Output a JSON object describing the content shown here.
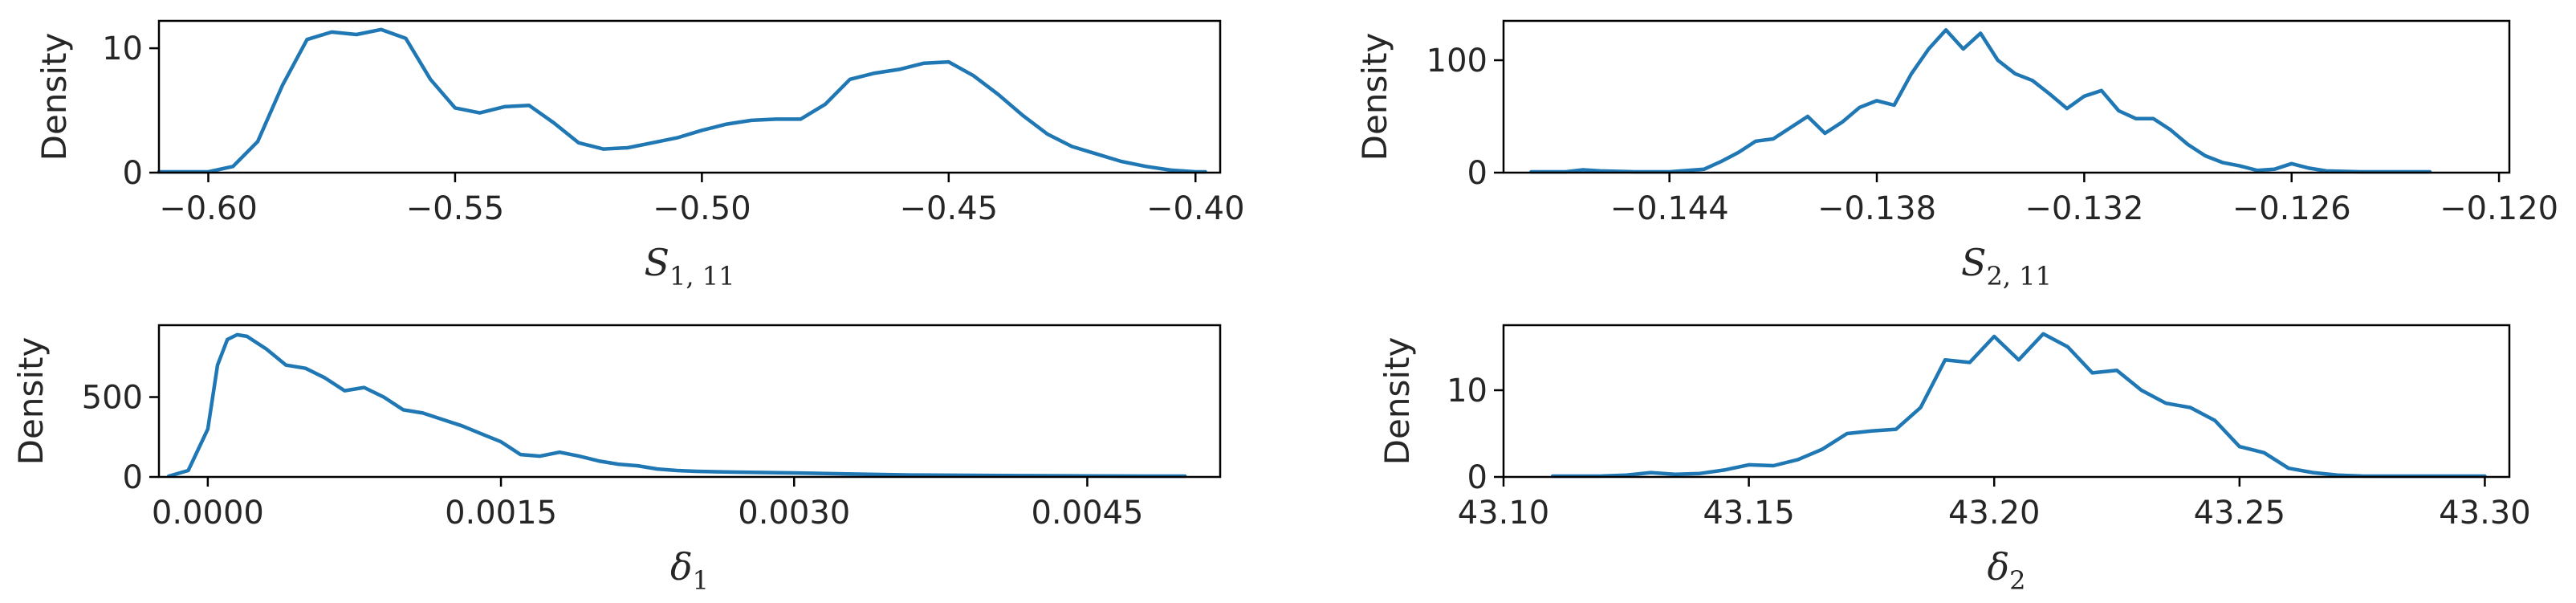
{
  "style": {
    "line_color": "#1f77b4",
    "background": "#ffffff",
    "axis_color": "#000000"
  },
  "chart_data": [
    {
      "type": "line",
      "ylabel": "Density",
      "xlabel_main": "S",
      "xlabel_sub": "1, 11",
      "xlim": [
        -0.61,
        -0.395
      ],
      "ylim": [
        0,
        12.2
      ],
      "xticks": [
        -0.6,
        -0.55,
        -0.5,
        -0.45,
        -0.4
      ],
      "xtick_labels": [
        "−0.60",
        "−0.55",
        "−0.50",
        "−0.45",
        "−0.40"
      ],
      "yticks": [
        0,
        10
      ],
      "ytick_labels": [
        "0",
        "10"
      ],
      "series": [
        {
          "x": [
            -0.61,
            -0.6,
            -0.595,
            -0.59,
            -0.585,
            -0.58,
            -0.575,
            -0.57,
            -0.565,
            -0.56,
            -0.555,
            -0.55,
            -0.545,
            -0.54,
            -0.535,
            -0.53,
            -0.525,
            -0.52,
            -0.515,
            -0.51,
            -0.505,
            -0.5,
            -0.495,
            -0.49,
            -0.485,
            -0.48,
            -0.475,
            -0.47,
            -0.465,
            -0.46,
            -0.455,
            -0.45,
            -0.445,
            -0.44,
            -0.435,
            -0.43,
            -0.425,
            -0.42,
            -0.415,
            -0.41,
            -0.405,
            -0.4,
            -0.398
          ],
          "y": [
            0.0,
            0.05,
            0.5,
            2.5,
            7.0,
            10.7,
            11.3,
            11.1,
            11.5,
            10.8,
            7.5,
            5.2,
            4.8,
            5.3,
            5.4,
            4.0,
            2.4,
            1.9,
            2.0,
            2.4,
            2.8,
            3.4,
            3.9,
            4.2,
            4.3,
            4.3,
            5.5,
            7.5,
            8.0,
            8.3,
            8.8,
            8.9,
            7.8,
            6.3,
            4.6,
            3.1,
            2.1,
            1.5,
            0.9,
            0.5,
            0.2,
            0.05,
            0.02
          ]
        }
      ]
    },
    {
      "type": "line",
      "ylabel": "Density",
      "xlabel_main": "S",
      "xlabel_sub": "2, 11",
      "xlim": [
        -0.1488,
        -0.1197
      ],
      "ylim": [
        0,
        135
      ],
      "xticks": [
        -0.144,
        -0.138,
        -0.132,
        -0.126,
        -0.12
      ],
      "xtick_labels": [
        "−0.144",
        "−0.138",
        "−0.132",
        "−0.126",
        "−0.120"
      ],
      "yticks": [
        0,
        100
      ],
      "ytick_labels": [
        "0",
        "100"
      ],
      "series": [
        {
          "x": [
            -0.148,
            -0.147,
            -0.1465,
            -0.146,
            -0.145,
            -0.144,
            -0.143,
            -0.1425,
            -0.142,
            -0.1415,
            -0.141,
            -0.1405,
            -0.14,
            -0.1395,
            -0.139,
            -0.1385,
            -0.138,
            -0.1375,
            -0.137,
            -0.1365,
            -0.136,
            -0.1355,
            -0.135,
            -0.1345,
            -0.134,
            -0.1335,
            -0.133,
            -0.1325,
            -0.132,
            -0.1315,
            -0.131,
            -0.1305,
            -0.13,
            -0.1295,
            -0.129,
            -0.1285,
            -0.128,
            -0.1275,
            -0.127,
            -0.1265,
            -0.126,
            -0.1255,
            -0.125,
            -0.124,
            -0.123,
            -0.122
          ],
          "y": [
            0,
            0.5,
            2.5,
            1.5,
            0.3,
            0.5,
            3.0,
            10,
            18,
            28,
            30,
            40,
            50,
            35,
            45,
            58,
            64,
            60,
            88,
            110,
            127,
            110,
            124,
            100,
            88,
            82,
            70,
            57,
            68,
            73,
            55,
            48,
            48,
            38,
            25,
            15,
            9,
            6,
            2,
            3,
            8,
            4,
            1.5,
            0.5,
            0.2,
            0
          ]
        }
      ]
    },
    {
      "type": "line",
      "ylabel": "Density",
      "xlabel_main": "δ",
      "xlabel_sub": "1",
      "xlim": [
        -0.00025,
        0.00518
      ],
      "ylim": [
        0,
        950
      ],
      "xticks": [
        0.0,
        0.0015,
        0.003,
        0.0045
      ],
      "xtick_labels": [
        "0.0000",
        "0.0015",
        "0.0030",
        "0.0045"
      ],
      "yticks": [
        0,
        500
      ],
      "ytick_labels": [
        "0",
        "500"
      ],
      "series": [
        {
          "x": [
            -0.0002,
            -0.0001,
            0.0,
            5e-05,
            0.0001,
            0.00015,
            0.0002,
            0.0003,
            0.0004,
            0.0005,
            0.0006,
            0.0007,
            0.0008,
            0.0009,
            0.001,
            0.0011,
            0.0012,
            0.0013,
            0.0014,
            0.0015,
            0.0016,
            0.0017,
            0.0018,
            0.0019,
            0.002,
            0.0021,
            0.0022,
            0.0023,
            0.0024,
            0.0025,
            0.0027,
            0.003,
            0.0033,
            0.0036,
            0.0039,
            0.0042,
            0.0045,
            0.0048,
            0.005
          ],
          "y": [
            0,
            40,
            300,
            700,
            860,
            890,
            880,
            800,
            700,
            680,
            620,
            540,
            560,
            500,
            420,
            400,
            360,
            320,
            270,
            220,
            140,
            130,
            155,
            130,
            100,
            80,
            70,
            50,
            40,
            35,
            30,
            25,
            18,
            12,
            10,
            8,
            6,
            4,
            2
          ]
        }
      ]
    },
    {
      "type": "line",
      "ylabel": "Density",
      "xlabel_main": "δ",
      "xlabel_sub": "2",
      "xlim": [
        43.1,
        43.305
      ],
      "ylim": [
        0,
        17.5
      ],
      "xticks": [
        43.1,
        43.15,
        43.2,
        43.25,
        43.3
      ],
      "xtick_labels": [
        "43.10",
        "43.15",
        "43.20",
        "43.25",
        "43.30"
      ],
      "yticks": [
        0,
        10
      ],
      "ytick_labels": [
        "0",
        "10"
      ],
      "series": [
        {
          "x": [
            43.11,
            43.12,
            43.125,
            43.13,
            43.135,
            43.14,
            43.145,
            43.15,
            43.155,
            43.16,
            43.165,
            43.17,
            43.175,
            43.18,
            43.185,
            43.19,
            43.195,
            43.2,
            43.205,
            43.21,
            43.215,
            43.22,
            43.225,
            43.23,
            43.235,
            43.24,
            43.245,
            43.25,
            43.255,
            43.26,
            43.265,
            43.27,
            43.275,
            43.28,
            43.29,
            43.3
          ],
          "y": [
            0,
            0.1,
            0.2,
            0.5,
            0.3,
            0.4,
            0.8,
            1.4,
            1.3,
            2.0,
            3.2,
            5.0,
            5.3,
            5.5,
            8.0,
            13.5,
            13.2,
            16.2,
            13.5,
            16.5,
            15.0,
            12.0,
            12.3,
            10.0,
            8.5,
            8.0,
            6.5,
            3.5,
            2.8,
            1.0,
            0.5,
            0.2,
            0.1,
            0.05,
            0.01,
            0
          ]
        }
      ]
    }
  ]
}
